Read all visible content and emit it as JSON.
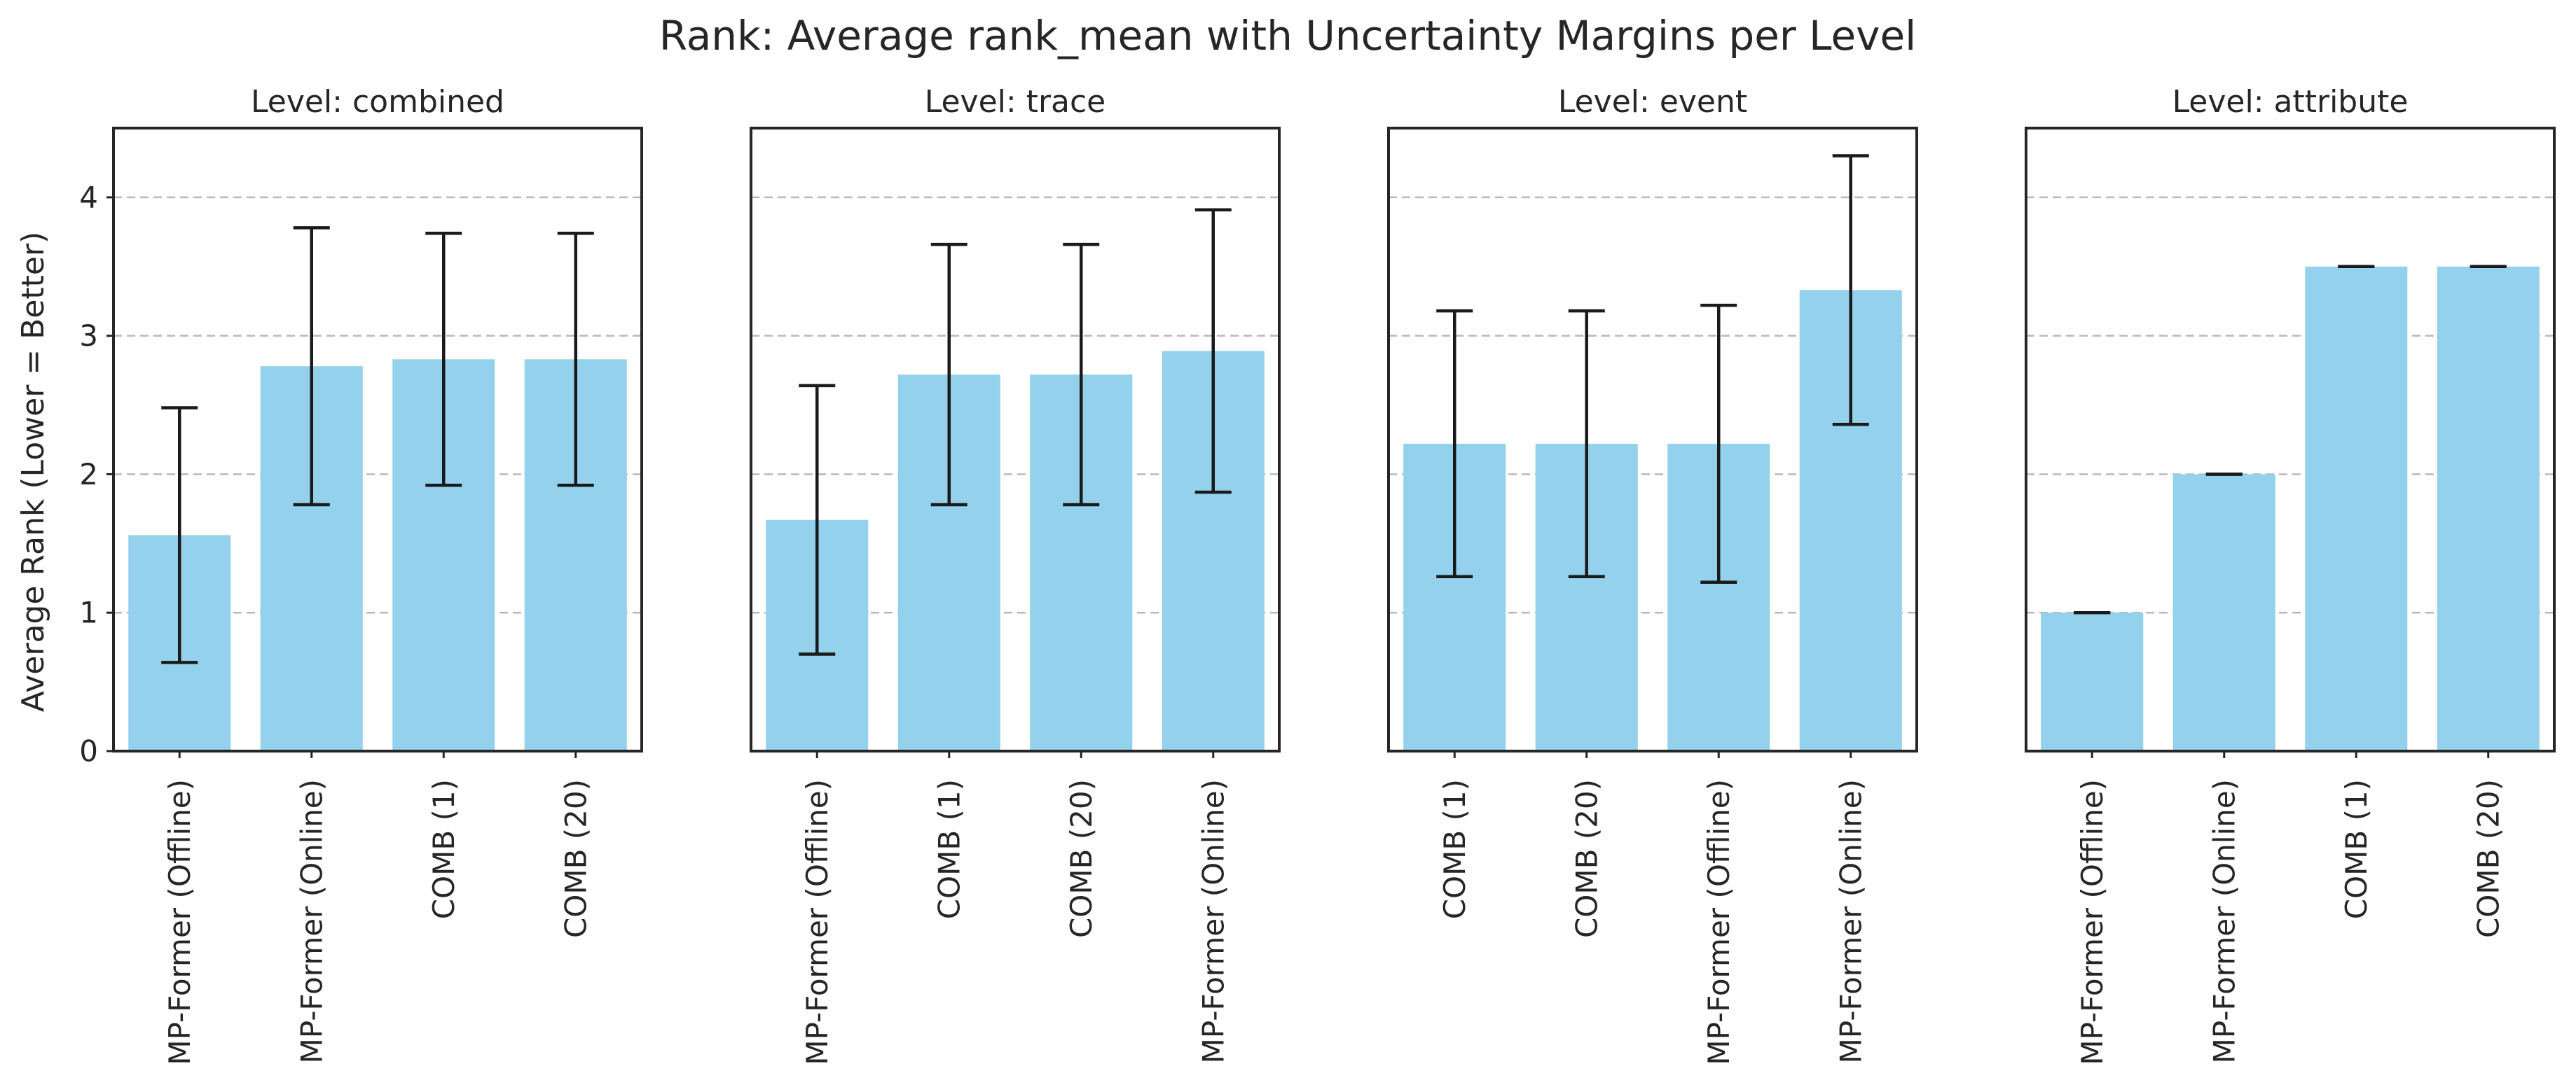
{
  "title": "Rank: Average rank_mean with Uncertainty Margins per Level",
  "ylabel": "Average Rank (Lower = Better)",
  "colors": {
    "bar": "#93d1ec",
    "error_bar": "#1a1a1a",
    "grid": "#b8b8b8",
    "axes": "#262626",
    "text": "#262626"
  },
  "chart_data": [
    {
      "type": "bar",
      "title": "Level: combined",
      "categories": [
        "MP-Former (Offline)",
        "MP-Former (Online)",
        "COMB (1)",
        "COMB (20)"
      ],
      "values": [
        1.56,
        2.78,
        2.83,
        2.83
      ],
      "errors": [
        0.92,
        1.0,
        0.91,
        0.91
      ],
      "ylim": [
        0,
        4.5
      ],
      "yticks": [
        0,
        1,
        2,
        3,
        4
      ],
      "grid": "horizontal dashed",
      "ylabel": "Average Rank (Lower = Better)",
      "xlabel": ""
    },
    {
      "type": "bar",
      "title": "Level: trace",
      "categories": [
        "MP-Former (Offline)",
        "COMB (1)",
        "COMB (20)",
        "MP-Former (Online)"
      ],
      "values": [
        1.67,
        2.72,
        2.72,
        2.89
      ],
      "errors": [
        0.97,
        0.94,
        0.94,
        1.02
      ],
      "ylim": [
        0,
        4.5
      ],
      "yticks": [
        0,
        1,
        2,
        3,
        4
      ],
      "grid": "horizontal dashed",
      "xlabel": ""
    },
    {
      "type": "bar",
      "title": "Level: event",
      "categories": [
        "COMB (1)",
        "COMB (20)",
        "MP-Former (Offline)",
        "MP-Former (Online)"
      ],
      "values": [
        2.22,
        2.22,
        2.22,
        3.33
      ],
      "errors": [
        0.96,
        0.96,
        1.0,
        0.97
      ],
      "ylim": [
        0,
        4.5
      ],
      "yticks": [
        0,
        1,
        2,
        3,
        4
      ],
      "grid": "horizontal dashed",
      "xlabel": ""
    },
    {
      "type": "bar",
      "title": "Level: attribute",
      "categories": [
        "MP-Former (Offline)",
        "MP-Former (Online)",
        "COMB (1)",
        "COMB (20)"
      ],
      "values": [
        1.0,
        2.0,
        3.5,
        3.5
      ],
      "errors": [
        0.0,
        0.0,
        0.0,
        0.0
      ],
      "ylim": [
        0,
        4.5
      ],
      "yticks": [
        0,
        1,
        2,
        3,
        4
      ],
      "grid": "horizontal dashed",
      "xlabel": ""
    }
  ]
}
